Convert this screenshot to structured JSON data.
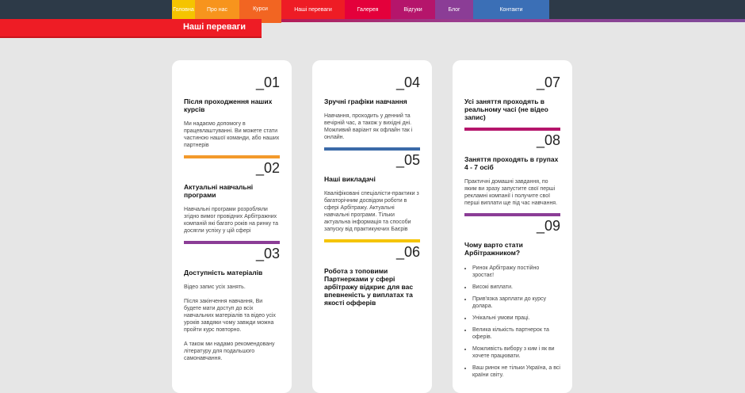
{
  "nav": {
    "items": [
      {
        "label": "Головна",
        "color": "#f5c400"
      },
      {
        "label": "Про нас",
        "color": "#f7941d"
      },
      {
        "label": "Курси",
        "color": "#f26522"
      },
      {
        "label": "Наші переваги",
        "color": "#ee1c25"
      },
      {
        "label": "Галерея",
        "color": "#e4003b"
      },
      {
        "label": "Відгуки",
        "color": "#b5156b"
      },
      {
        "label": "Блог",
        "color": "#8b3d96"
      },
      {
        "label": "Контакти",
        "color": "#3b6fb6"
      }
    ],
    "active": "Курси"
  },
  "banner": {
    "title": "Наші переваги"
  },
  "features": [
    {
      "num": "_01",
      "title": "Після проходження наших курсів",
      "text": [
        "Ми надаємо допомогу в працевлаштуванні. Ви можете стати частиною нашої команди, або наших партнерів"
      ],
      "bar": "#f39a2b"
    },
    {
      "num": "_02",
      "title": "Актуальні навчальні програми",
      "text": [
        "Навчальні програми розробляли згідно вимог провідних Арбітражних компаній які багато років на ринку та досягли успіху у цій сфері"
      ],
      "bar": "#8b3d96"
    },
    {
      "num": "_03",
      "title": "Доступність матеріалів",
      "text": [
        "Відео запис усіх занять.",
        "Після закінчення навчання, Ви будете мати доступ до всіх навчальних матеріалів та відео усіх уроків завдяки чому завжди можна пройти курс повторно.",
        "А також ми надамо рекомендовану літературу для подальшого самонавчання."
      ]
    },
    {
      "num": "_04",
      "title": "Зручні графіки навчання",
      "text": [
        "Навчання, проходить у денний та вечірній час, а також у вихідні дні. Можливий варіант як офлайн так і онлайн."
      ],
      "bar": "#3b6aa8"
    },
    {
      "num": "_05",
      "title": "Наші викладачі",
      "text": [
        "Кваліфіковані спеціалісти-практики з багаторічним досвідом роботи в сфері Арбітражу. Актуальні навчальні програми. Тільки актуальна інформація та способи запуску від практикуючих Баєрів"
      ],
      "bar": "#f5c400"
    },
    {
      "num": "_06",
      "title": "Робота з топовими Партнерками у сфері арбітражу відкриє для вас впевненість у виплатах та якості офферів",
      "text": []
    },
    {
      "num": "_07",
      "title": "Усі заняття проходять в реальному часі (не відео запис)",
      "text": [],
      "bar": "#b5156b"
    },
    {
      "num": "_08",
      "title": "Заняття проходять в групах 4 - 7 осіб",
      "text": [
        "Практичні домашні завдання, по яким ви зразу запустите свої перші рекламні компанії і получите свої перші виплати ще під час навчання."
      ],
      "bar": "#8b3d96"
    },
    {
      "num": "_09",
      "title": "Чому варто стати Арбітражником?",
      "list": [
        "Ринок Арбітражу постійно зростає!",
        "Високі виплати.",
        "Прив'язка зарплати до курсу долара.",
        "Унікальні умови праці.",
        "Велика кількість партнерок та оферів.",
        "Можливість вибору з ким і як ви хочете працювати.",
        "Ваш ринок не тільки Україна, а всі країни світу."
      ]
    }
  ]
}
